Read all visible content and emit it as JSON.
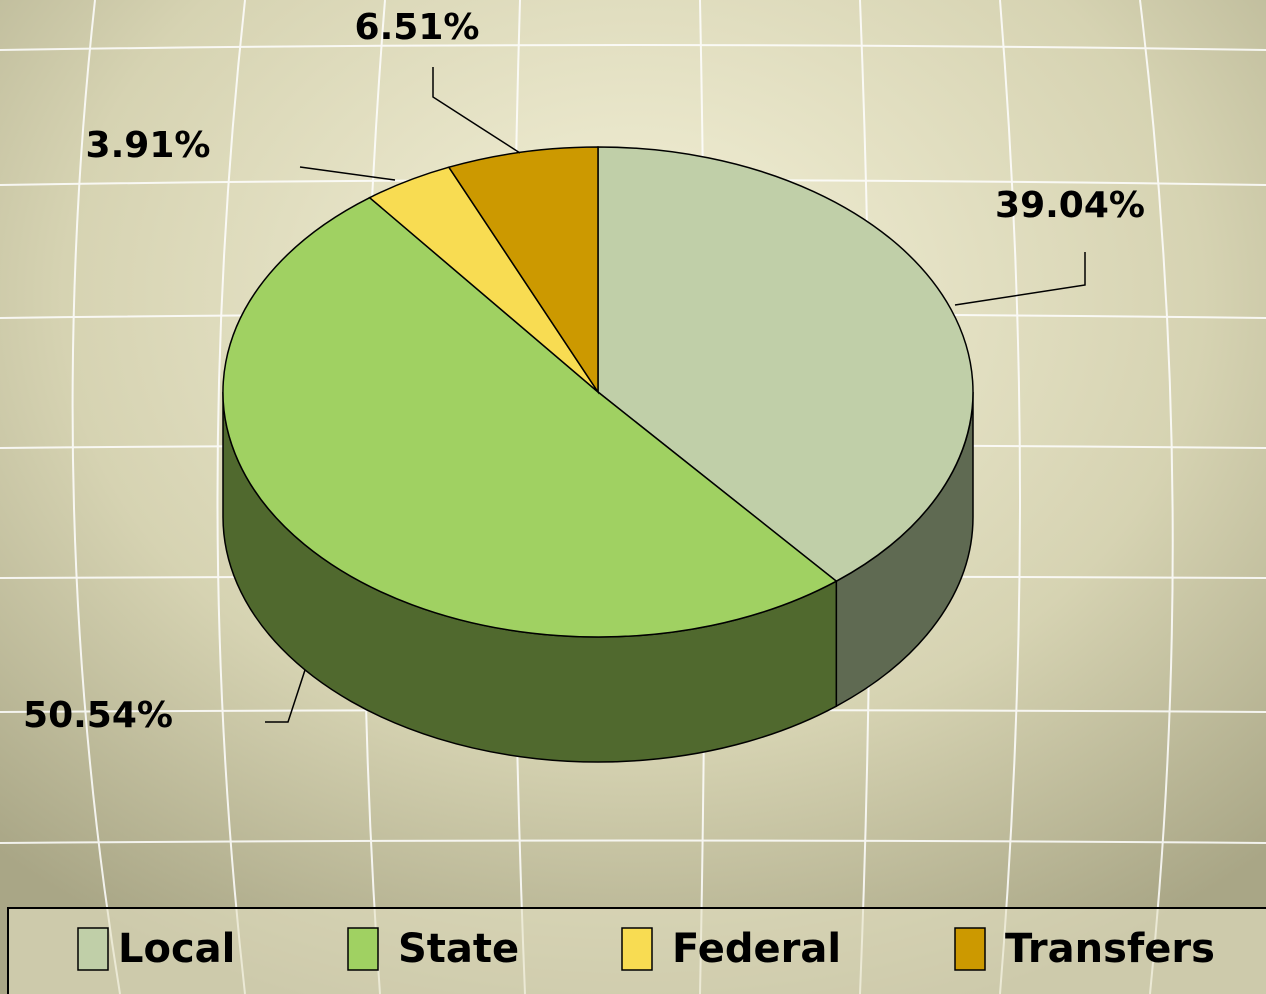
{
  "chart_data": {
    "type": "pie",
    "categories": [
      "Local",
      "State",
      "Federal",
      "Transfers"
    ],
    "values": [
      39.04,
      50.54,
      3.91,
      6.51
    ],
    "value_labels": [
      "39.04%",
      "50.54%",
      "3.91%",
      "6.51%"
    ],
    "colors": [
      "#c0cfa8",
      "#a0d162",
      "#f8dc52",
      "#cc9900"
    ],
    "side_colors": [
      "#5f6a52",
      "#50692e",
      "#9a8a30",
      "#7a5c00"
    ],
    "legend": "bottom"
  }
}
